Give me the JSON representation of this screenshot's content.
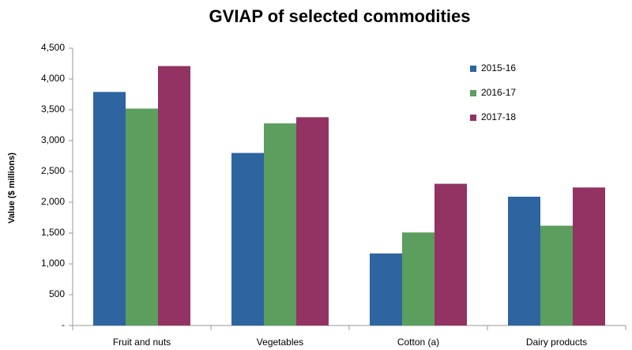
{
  "chart_data": {
    "type": "bar",
    "title": "GVIAP of selected commodities",
    "y_label": "Value ($ millions)",
    "categories": [
      "Fruit and nuts",
      "Vegetables",
      "Cotton (a)",
      "Dairy products"
    ],
    "series": [
      {
        "name": "2015-16",
        "color": "#2e64a0",
        "values": [
          3790,
          2800,
          1170,
          2090
        ]
      },
      {
        "name": "2016-17",
        "color": "#5c9e5e",
        "values": [
          3520,
          3280,
          1510,
          1620
        ]
      },
      {
        "name": "2017-18",
        "color": "#933363",
        "values": [
          4210,
          3380,
          2300,
          2240
        ]
      }
    ],
    "ylim": [
      0,
      4500
    ],
    "yticks": [
      {
        "value": 0,
        "label": "-"
      },
      500,
      {
        "value": 1000,
        "label": "1,000"
      },
      {
        "value": 1500,
        "label": "1,500"
      },
      {
        "value": 2000,
        "label": "2,000"
      },
      {
        "value": 2500,
        "label": "2,500"
      },
      {
        "value": 3000,
        "label": "3,000"
      },
      {
        "value": 3500,
        "label": "3,500"
      },
      {
        "value": 4000,
        "label": "4,000"
      },
      {
        "value": 4500,
        "label": "4,500"
      }
    ],
    "grid": false,
    "legend": "top-right"
  }
}
